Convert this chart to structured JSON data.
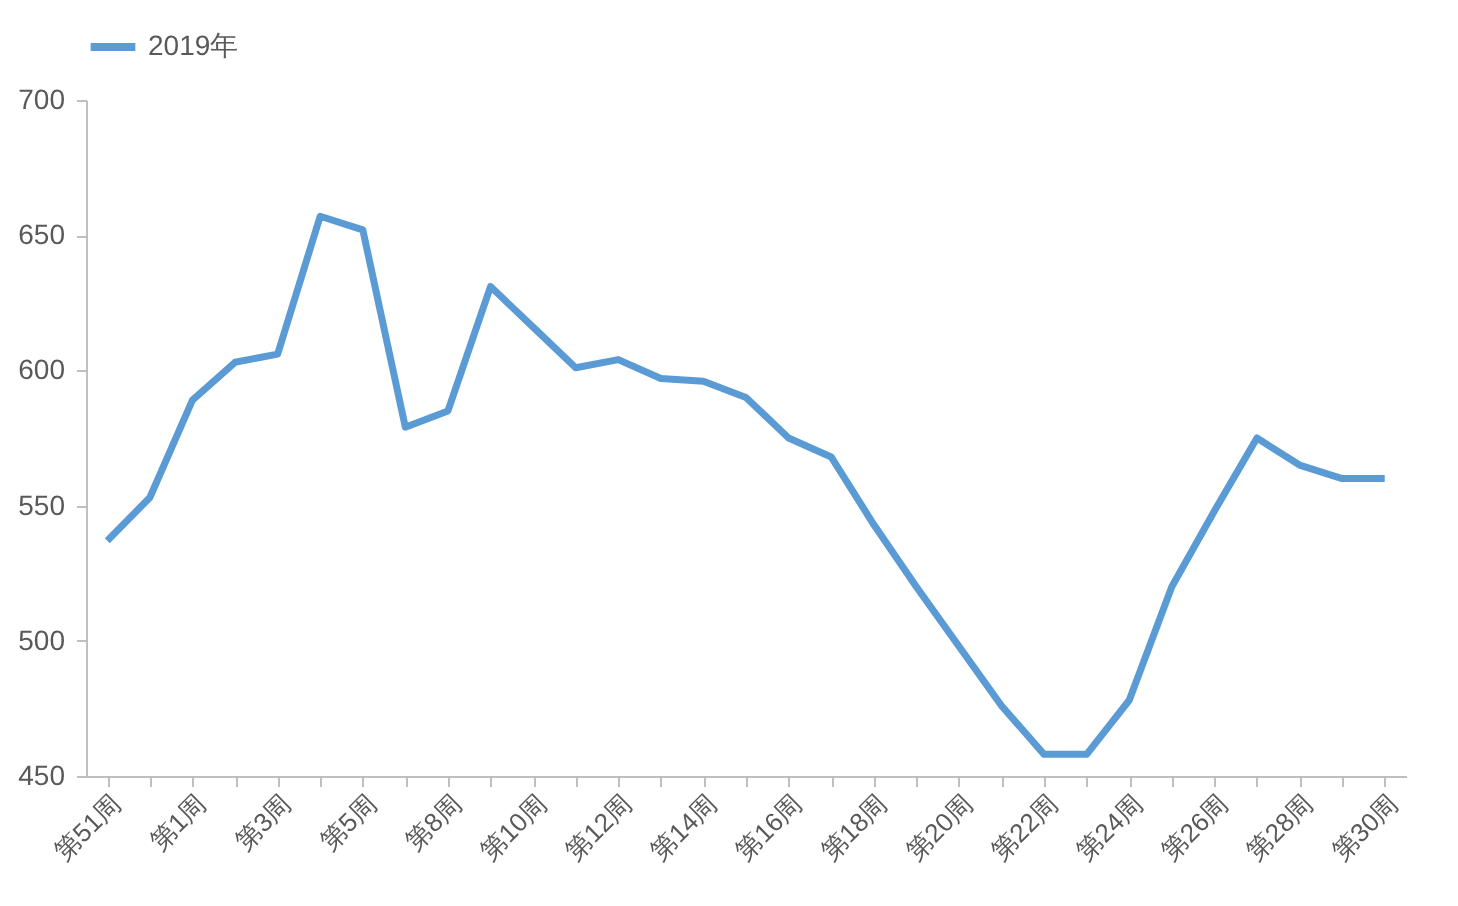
{
  "chart_data": {
    "type": "line",
    "categories": [
      "第51周",
      null,
      "第1周",
      null,
      "第3周",
      null,
      "第5周",
      null,
      "第8周",
      null,
      "第10周",
      null,
      "第12周",
      null,
      "第14周",
      null,
      "第16周",
      null,
      "第18周",
      null,
      "第20周",
      null,
      "第22周",
      null,
      "第24周",
      null,
      "第26周",
      null,
      "第28周",
      null,
      "第30周"
    ],
    "series": [
      {
        "name": "2019年",
        "color": "#5b9bd5",
        "values": [
          537,
          553,
          589,
          603,
          606,
          657,
          652,
          579,
          585,
          631,
          616,
          601,
          604,
          597,
          596,
          590,
          575,
          568,
          543,
          520,
          498,
          476,
          458,
          458,
          478,
          520,
          548,
          575,
          565,
          560,
          560
        ]
      }
    ],
    "ylim": [
      450,
      700
    ],
    "yticks": [
      450,
      500,
      550,
      600,
      650,
      700
    ],
    "grid": false,
    "legend": "top",
    "marker": "none",
    "line_style": "solid"
  }
}
